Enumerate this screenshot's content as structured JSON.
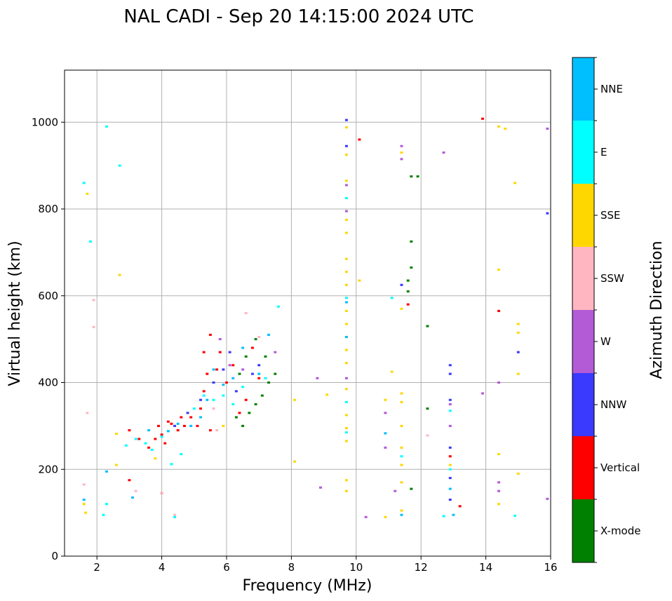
{
  "chart_data": {
    "type": "scatter",
    "title": "NAL CADI - Sep 20 14:15:00 2024 UTC",
    "xlabel": "Frequency (MHz)",
    "ylabel": "Virtual height (km)",
    "xlim": [
      1,
      16
    ],
    "ylim": [
      0,
      1120
    ],
    "xticks": [
      2,
      4,
      6,
      8,
      10,
      12,
      14,
      16
    ],
    "yticks": [
      0,
      200,
      400,
      600,
      800,
      1000
    ],
    "grid": true,
    "colorbar": {
      "label": "Azimuth Direction",
      "categories": [
        "X-mode",
        "Vertical",
        "NNW",
        "W",
        "SSW",
        "SSE",
        "E",
        "NNE"
      ],
      "colors": [
        "#008000",
        "#ff0000",
        "#3a3aff",
        "#b35ad7",
        "#ffb6c1",
        "#ffd700",
        "#00ffff",
        "#00bfff"
      ]
    },
    "series": [
      {
        "name": "Vertical",
        "points": [
          [
            3.6,
            250
          ],
          [
            3.8,
            270
          ],
          [
            3.9,
            300
          ],
          [
            4.0,
            280
          ],
          [
            4.2,
            310
          ],
          [
            4.1,
            260
          ],
          [
            4.3,
            305
          ],
          [
            4.5,
            290
          ],
          [
            4.7,
            300
          ],
          [
            4.9,
            320
          ],
          [
            5.1,
            300
          ],
          [
            5.2,
            340
          ],
          [
            5.3,
            380
          ],
          [
            5.4,
            420
          ],
          [
            5.3,
            470
          ],
          [
            5.5,
            510
          ],
          [
            5.7,
            430
          ],
          [
            5.8,
            470
          ],
          [
            6.0,
            400
          ],
          [
            6.2,
            440
          ],
          [
            6.4,
            330
          ],
          [
            6.6,
            360
          ],
          [
            6.8,
            480
          ],
          [
            7.0,
            410
          ],
          [
            5.5,
            290
          ],
          [
            4.6,
            320
          ],
          [
            3.3,
            270
          ],
          [
            3.0,
            290
          ],
          [
            3.0,
            175
          ],
          [
            4.0,
            145
          ],
          [
            10.1,
            960
          ],
          [
            13.9,
            1008
          ],
          [
            14.4,
            565
          ],
          [
            12.9,
            230
          ],
          [
            13.2,
            115
          ],
          [
            11.6,
            580
          ]
        ]
      },
      {
        "name": "X-mode",
        "points": [
          [
            6.3,
            320
          ],
          [
            6.5,
            300
          ],
          [
            6.7,
            330
          ],
          [
            6.9,
            350
          ],
          [
            7.1,
            370
          ],
          [
            7.3,
            400
          ],
          [
            7.5,
            420
          ],
          [
            6.6,
            460
          ],
          [
            6.9,
            500
          ],
          [
            6.4,
            420
          ],
          [
            7.2,
            460
          ],
          [
            11.7,
            875
          ],
          [
            11.7,
            725
          ],
          [
            11.7,
            665
          ],
          [
            11.6,
            635
          ],
          [
            11.6,
            610
          ],
          [
            12.2,
            530
          ],
          [
            12.2,
            340
          ],
          [
            11.7,
            155
          ],
          [
            11.9,
            875
          ]
        ]
      },
      {
        "name": "NNW",
        "points": [
          [
            5.2,
            360
          ],
          [
            5.6,
            400
          ],
          [
            5.9,
            430
          ],
          [
            6.1,
            470
          ],
          [
            6.3,
            380
          ],
          [
            6.8,
            420
          ],
          [
            7.0,
            440
          ],
          [
            4.4,
            300
          ],
          [
            4.8,
            330
          ],
          [
            11.4,
            625
          ],
          [
            12.9,
            440
          ],
          [
            12.9,
            360
          ],
          [
            12.9,
            250
          ],
          [
            12.9,
            180
          ],
          [
            12.9,
            130
          ],
          [
            12.9,
            420
          ],
          [
            15.9,
            790
          ],
          [
            15.0,
            470
          ],
          [
            9.7,
            1005
          ],
          [
            9.7,
            945
          ]
        ]
      },
      {
        "name": "W",
        "points": [
          [
            5.8,
            500
          ],
          [
            6.1,
            440
          ],
          [
            6.5,
            430
          ],
          [
            7.5,
            470
          ],
          [
            8.8,
            410
          ],
          [
            8.9,
            158
          ],
          [
            9.7,
            855
          ],
          [
            9.7,
            795
          ],
          [
            9.7,
            410
          ],
          [
            11.4,
            945
          ],
          [
            11.4,
            915
          ],
          [
            12.7,
            930
          ],
          [
            12.9,
            350
          ],
          [
            12.9,
            300
          ],
          [
            13.9,
            375
          ],
          [
            14.4,
            400
          ],
          [
            14.4,
            170
          ],
          [
            14.4,
            150
          ],
          [
            15.9,
            985
          ],
          [
            15.9,
            132
          ],
          [
            10.3,
            90
          ],
          [
            11.2,
            150
          ],
          [
            10.9,
            250
          ],
          [
            10.9,
            330
          ]
        ]
      },
      {
        "name": "SSW",
        "points": [
          [
            1.6,
            165
          ],
          [
            1.9,
            590
          ],
          [
            1.9,
            528
          ],
          [
            1.7,
            330
          ],
          [
            4.0,
            145
          ],
          [
            4.4,
            95
          ],
          [
            5.7,
            290
          ],
          [
            5.6,
            340
          ],
          [
            6.6,
            560
          ],
          [
            7.0,
            505
          ],
          [
            12.2,
            278
          ],
          [
            3.2,
            150
          ]
        ]
      },
      {
        "name": "SSE",
        "points": [
          [
            1.6,
            120
          ],
          [
            1.65,
            100
          ],
          [
            1.7,
            835
          ],
          [
            2.7,
            648
          ],
          [
            2.6,
            282
          ],
          [
            2.6,
            210
          ],
          [
            3.8,
            225
          ],
          [
            5.9,
            300
          ],
          [
            8.1,
            360
          ],
          [
            8.1,
            218
          ],
          [
            9.1,
            372
          ],
          [
            9.7,
            988
          ],
          [
            9.7,
            925
          ],
          [
            9.7,
            865
          ],
          [
            9.7,
            775
          ],
          [
            9.7,
            745
          ],
          [
            9.7,
            685
          ],
          [
            9.7,
            655
          ],
          [
            9.7,
            625
          ],
          [
            9.7,
            565
          ],
          [
            9.7,
            535
          ],
          [
            9.7,
            505
          ],
          [
            9.7,
            475
          ],
          [
            9.7,
            445
          ],
          [
            9.7,
            385
          ],
          [
            9.7,
            325
          ],
          [
            9.7,
            295
          ],
          [
            9.7,
            265
          ],
          [
            9.7,
            175
          ],
          [
            9.7,
            150
          ],
          [
            10.1,
            635
          ],
          [
            10.9,
            360
          ],
          [
            10.9,
            90
          ],
          [
            11.4,
            930
          ],
          [
            11.4,
            570
          ],
          [
            11.4,
            375
          ],
          [
            11.4,
            355
          ],
          [
            11.4,
            300
          ],
          [
            11.4,
            250
          ],
          [
            11.4,
            210
          ],
          [
            11.4,
            170
          ],
          [
            11.4,
            105
          ],
          [
            11.1,
            425
          ],
          [
            12.9,
            210
          ],
          [
            14.4,
            660
          ],
          [
            14.4,
            990
          ],
          [
            14.6,
            985
          ],
          [
            14.9,
            860
          ],
          [
            15.0,
            535
          ],
          [
            15.0,
            515
          ],
          [
            15.0,
            420
          ],
          [
            15.0,
            190
          ],
          [
            14.4,
            235
          ],
          [
            14.4,
            120
          ]
        ]
      },
      {
        "name": "E",
        "points": [
          [
            1.6,
            860
          ],
          [
            1.8,
            725
          ],
          [
            2.3,
            990
          ],
          [
            2.7,
            900
          ],
          [
            2.9,
            255
          ],
          [
            3.2,
            270
          ],
          [
            3.5,
            260
          ],
          [
            3.7,
            245
          ],
          [
            4.0,
            275
          ],
          [
            4.3,
            212
          ],
          [
            4.6,
            235
          ],
          [
            5.0,
            340
          ],
          [
            5.3,
            370
          ],
          [
            5.6,
            360
          ],
          [
            5.9,
            370
          ],
          [
            6.2,
            350
          ],
          [
            6.5,
            390
          ],
          [
            7.2,
            410
          ],
          [
            7.6,
            575
          ],
          [
            9.7,
            825
          ],
          [
            9.7,
            595
          ],
          [
            9.7,
            355
          ],
          [
            9.7,
            285
          ],
          [
            11.1,
            595
          ],
          [
            11.4,
            230
          ],
          [
            12.9,
            335
          ],
          [
            12.9,
            200
          ],
          [
            14.9,
            93
          ],
          [
            12.7,
            92
          ],
          [
            2.3,
            120
          ],
          [
            2.2,
            95
          ],
          [
            4.4,
            90
          ]
        ]
      },
      {
        "name": "NNE",
        "points": [
          [
            1.6,
            130
          ],
          [
            2.3,
            195
          ],
          [
            3.1,
            135
          ],
          [
            3.6,
            290
          ],
          [
            4.2,
            288
          ],
          [
            4.5,
            305
          ],
          [
            4.9,
            300
          ],
          [
            5.2,
            320
          ],
          [
            5.4,
            360
          ],
          [
            5.6,
            430
          ],
          [
            5.9,
            395
          ],
          [
            6.2,
            410
          ],
          [
            6.5,
            480
          ],
          [
            7.3,
            510
          ],
          [
            7.0,
            420
          ],
          [
            9.7,
            585
          ],
          [
            9.7,
            505
          ],
          [
            11.4,
            95
          ],
          [
            12.9,
            155
          ],
          [
            13.0,
            95
          ],
          [
            10.9,
            283
          ]
        ]
      }
    ]
  }
}
